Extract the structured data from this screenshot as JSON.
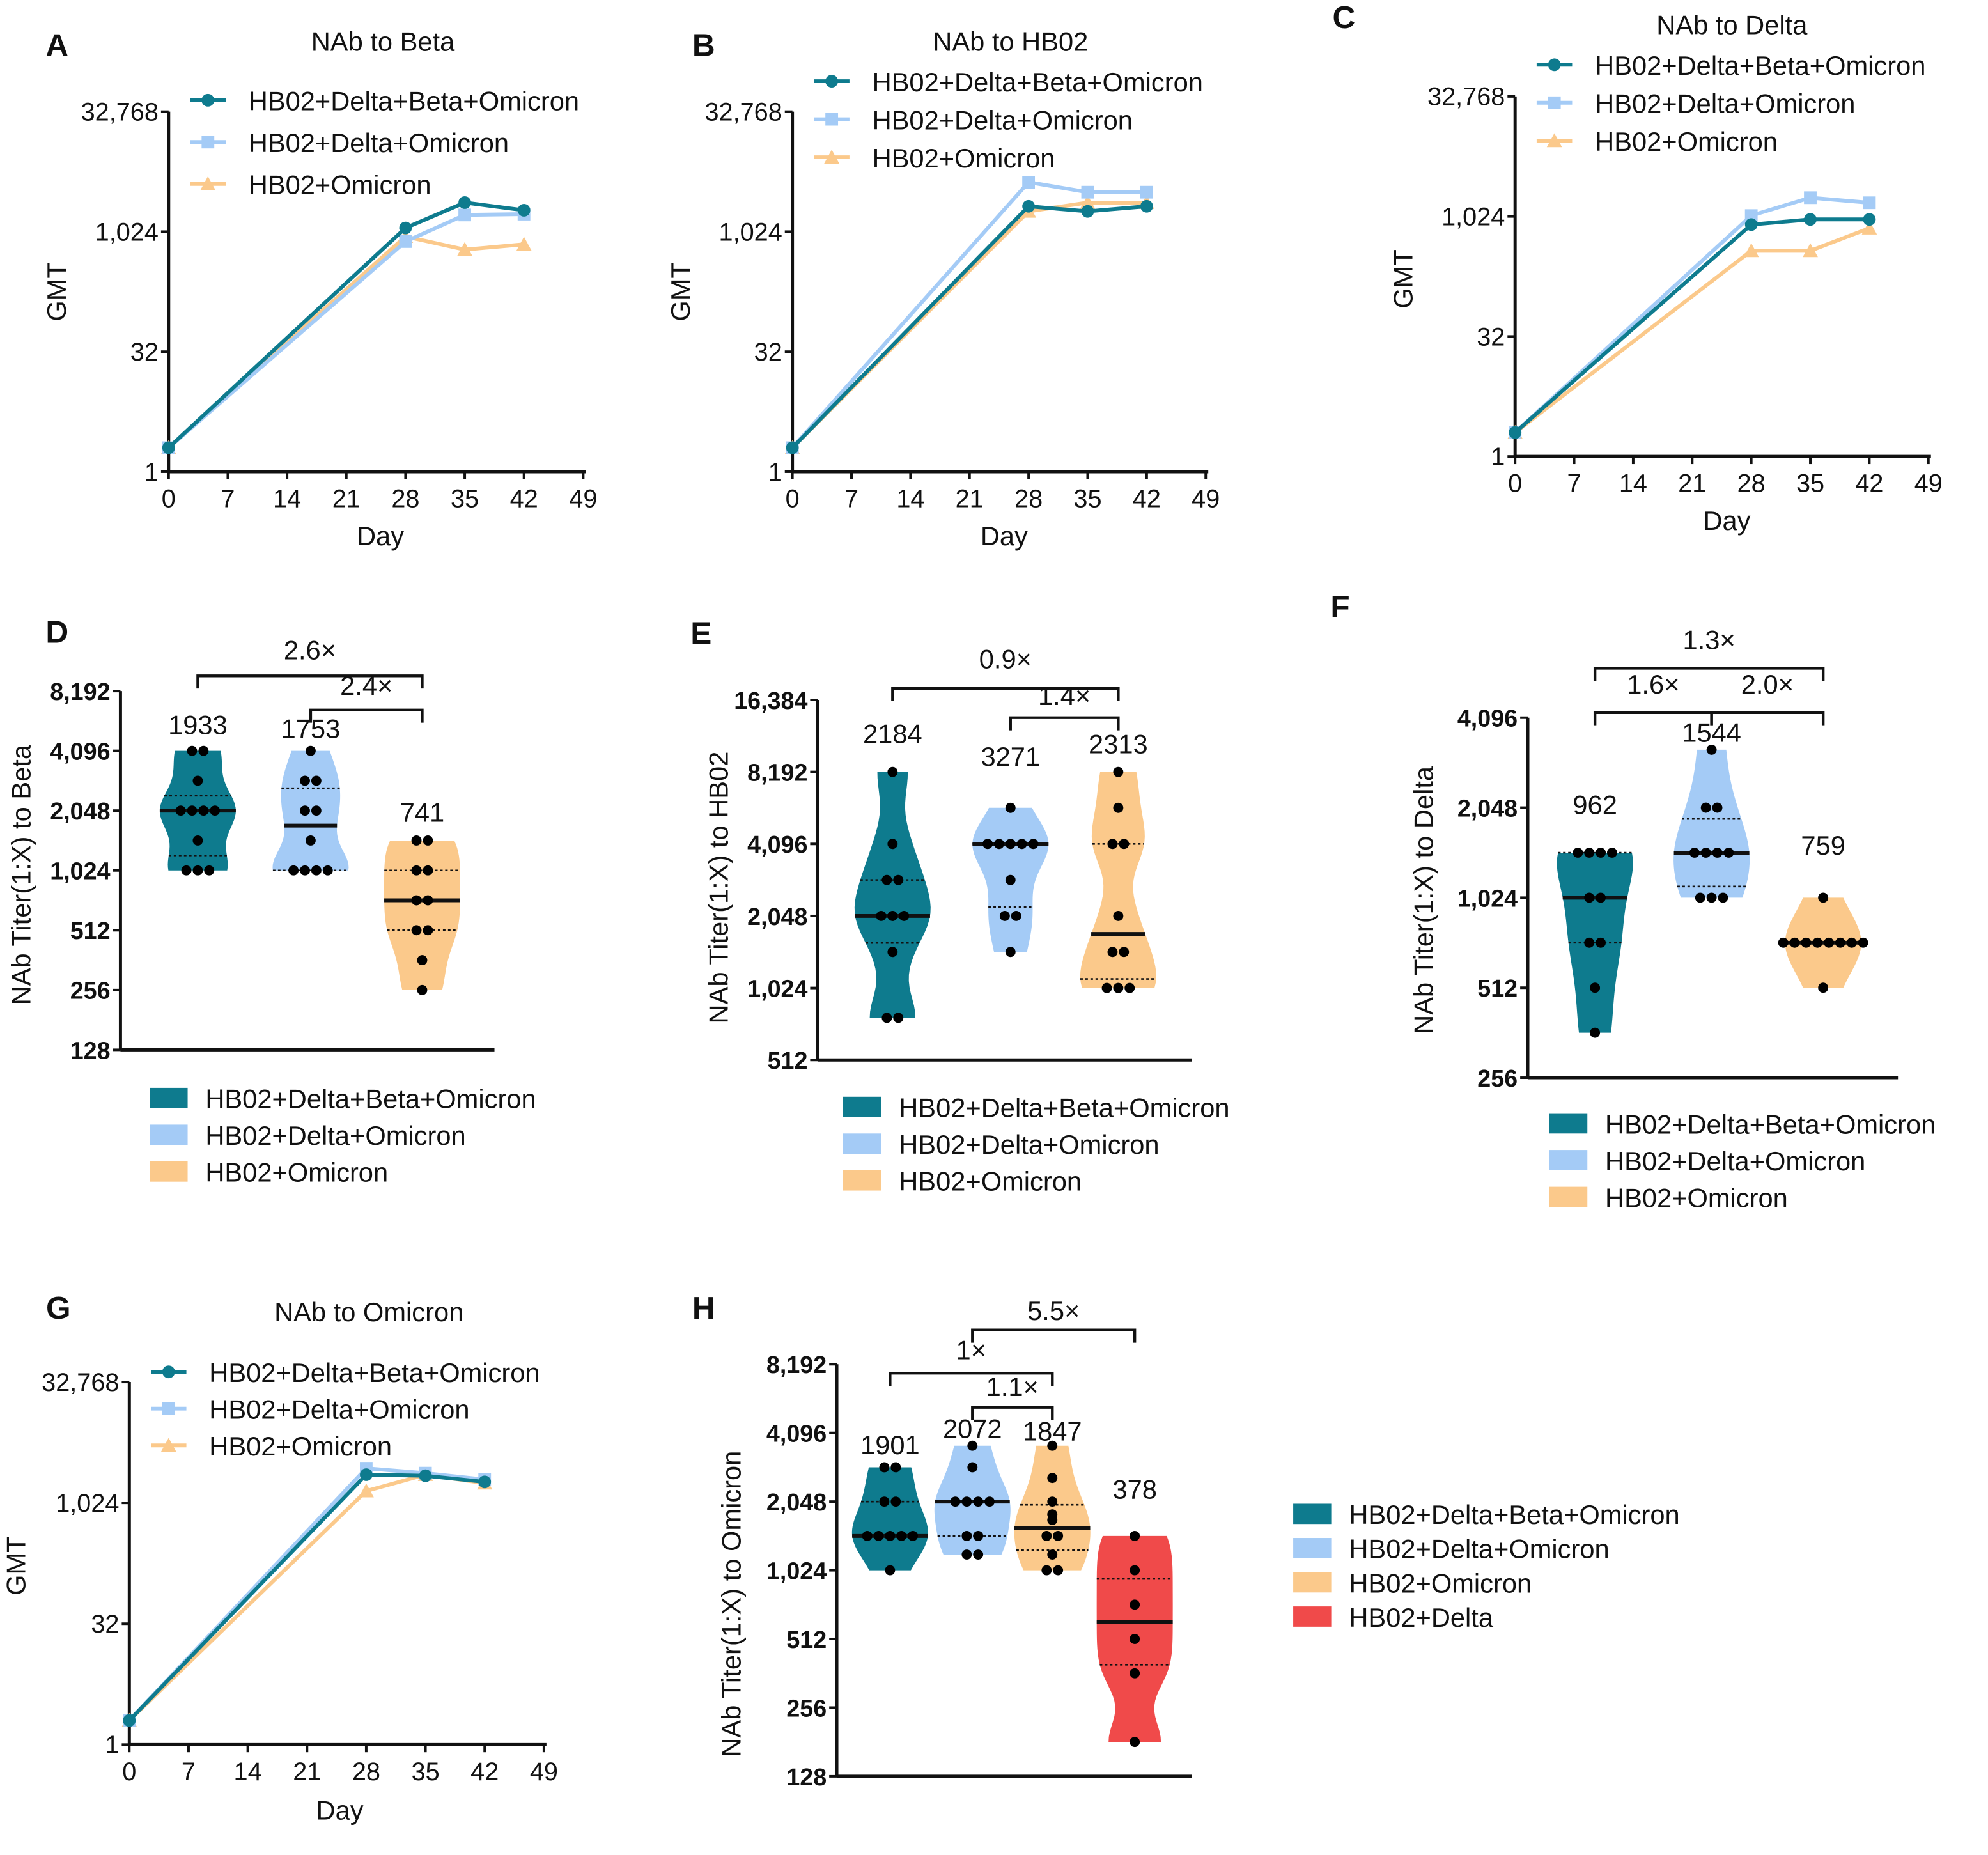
{
  "colors": {
    "teal": "#0e7b8e",
    "blue": "#a4cbf6",
    "orange": "#fbc98b",
    "red": "#f04a4a",
    "axis": "#111111"
  },
  "chart_data": [
    {
      "panel": "A",
      "type": "line",
      "title": "NAb to Beta",
      "xlabel": "Day",
      "ylabel": "GMT",
      "yscale": "log2",
      "ylim": [
        1,
        32768
      ],
      "yticks": [
        "1",
        "32",
        "1,024",
        "32,768"
      ],
      "xticks": [
        "0",
        "7",
        "14",
        "21",
        "28",
        "35",
        "42",
        "49"
      ],
      "xlim": [
        0,
        49
      ],
      "x": [
        0,
        28,
        35,
        42
      ],
      "series": [
        {
          "name": "HB02+Delta+Beta+Omicron",
          "marker": "circle",
          "values": [
            2,
            1140,
            2370,
            1900
          ]
        },
        {
          "name": "HB02+Delta+Omicron",
          "marker": "square",
          "values": [
            2,
            770,
            1660,
            1700
          ]
        },
        {
          "name": "HB02+Omicron",
          "marker": "triangle",
          "values": [
            2,
            890,
            610,
            710
          ]
        }
      ]
    },
    {
      "panel": "B",
      "type": "line",
      "title": "NAb to HB02",
      "xlabel": "Day",
      "ylabel": "GMT",
      "yscale": "log2",
      "ylim": [
        1,
        32768
      ],
      "yticks": [
        "1",
        "32",
        "1,024",
        "32,768"
      ],
      "xticks": [
        "0",
        "7",
        "14",
        "21",
        "28",
        "35",
        "42",
        "49"
      ],
      "xlim": [
        0,
        49
      ],
      "x": [
        0,
        28,
        35,
        42
      ],
      "series": [
        {
          "name": "HB02+Delta+Beta+Omicron",
          "marker": "circle",
          "values": [
            2,
            2130,
            1840,
            2130
          ]
        },
        {
          "name": "HB02+Delta+Omicron",
          "marker": "square",
          "values": [
            2,
            4270,
            3200,
            3200
          ]
        },
        {
          "name": "HB02+Omicron",
          "marker": "triangle",
          "values": [
            2,
            1840,
            2370,
            2370
          ]
        }
      ]
    },
    {
      "panel": "C",
      "type": "line",
      "title": "NAb to Delta",
      "xlabel": "Day",
      "ylabel": "GMT",
      "yscale": "log2",
      "ylim": [
        1,
        32768
      ],
      "yticks": [
        "1",
        "32",
        "1,024",
        "32,768"
      ],
      "xticks": [
        "0",
        "7",
        "14",
        "21",
        "28",
        "35",
        "42",
        "49"
      ],
      "xlim": [
        0,
        49
      ],
      "x": [
        0,
        28,
        35,
        42
      ],
      "series": [
        {
          "name": "HB02+Delta+Beta+Omicron",
          "marker": "circle",
          "values": [
            2,
            810,
            940,
            940
          ]
        },
        {
          "name": "HB02+Delta+Omicron",
          "marker": "square",
          "values": [
            2,
            1050,
            1760,
            1520
          ]
        },
        {
          "name": "HB02+Omicron",
          "marker": "triangle",
          "values": [
            2,
            380,
            380,
            730
          ]
        }
      ]
    },
    {
      "panel": "D",
      "type": "violin",
      "ylabel": "NAb Titer(1:X) to Beta",
      "yscale": "log2",
      "ylim": [
        128,
        8192
      ],
      "yticks": [
        "128",
        "256",
        "512",
        "1,024",
        "2,048",
        "4,096",
        "8,192"
      ],
      "groups": [
        {
          "name": "HB02+Delta+Beta+Omicron",
          "gmt": "1933",
          "points": [
            4096,
            4096,
            2896,
            2048,
            2048,
            2048,
            2048,
            1448,
            1024,
            1024,
            1024
          ]
        },
        {
          "name": "HB02+Delta+Omicron",
          "gmt": "1753",
          "points": [
            4096,
            2896,
            2896,
            2048,
            1448,
            1024,
            1024,
            1024,
            1024,
            2048
          ]
        },
        {
          "name": "HB02+Omicron",
          "gmt": "741",
          "points": [
            1448,
            1448,
            1024,
            1024,
            724,
            724,
            512,
            512,
            362,
            256
          ]
        }
      ],
      "comparisons": [
        {
          "from": 0,
          "to": 2,
          "label": "2.6×"
        },
        {
          "from": 1,
          "to": 2,
          "label": "2.4×"
        }
      ]
    },
    {
      "panel": "E",
      "type": "violin",
      "ylabel": "NAb Titer(1:X) to HB02",
      "yscale": "log2",
      "ylim": [
        512,
        16384
      ],
      "yticks": [
        "512",
        "1,024",
        "2,048",
        "4,096",
        "8,192",
        "16,384"
      ],
      "groups": [
        {
          "name": "HB02+Delta+Beta+Omicron",
          "gmt": "2184",
          "points": [
            8192,
            4096,
            2896,
            2896,
            2048,
            2048,
            2048,
            1448,
            768,
            768
          ]
        },
        {
          "name": "HB02+Delta+Omicron",
          "gmt": "3271",
          "points": [
            5800,
            4096,
            4096,
            4096,
            4096,
            4096,
            2896,
            2048,
            2048,
            1448
          ]
        },
        {
          "name": "HB02+Omicron",
          "gmt": "2313",
          "points": [
            8192,
            5800,
            4096,
            4096,
            2048,
            1448,
            1448,
            1024,
            1024,
            1024
          ]
        }
      ],
      "comparisons": [
        {
          "from": 0,
          "to": 2,
          "label": "0.9×"
        },
        {
          "from": 1,
          "to": 2,
          "label": "1.4×"
        }
      ]
    },
    {
      "panel": "F",
      "type": "violin",
      "ylabel": "NAb Titer(1:X) to Delta",
      "yscale": "log2",
      "ylim": [
        256,
        4096
      ],
      "yticks": [
        "256",
        "512",
        "1,024",
        "2,048",
        "4,096"
      ],
      "groups": [
        {
          "name": "HB02+Delta+Beta+Omicron",
          "gmt": "962",
          "points": [
            1448,
            1448,
            1448,
            1448,
            1024,
            1024,
            724,
            724,
            512,
            362
          ]
        },
        {
          "name": "HB02+Delta+Omicron",
          "gmt": "1544",
          "points": [
            3200,
            2048,
            2048,
            1448,
            1448,
            1448,
            1448,
            1024,
            1024,
            1024
          ]
        },
        {
          "name": "HB02+Omicron",
          "gmt": "759",
          "points": [
            1024,
            724,
            724,
            724,
            724,
            724,
            724,
            724,
            724,
            512
          ]
        }
      ],
      "comparisons": [
        {
          "from": 0,
          "to": 2,
          "label": "1.3×"
        },
        {
          "from": 0,
          "to": 1,
          "label": "1.6×"
        },
        {
          "from": 1,
          "to": 2,
          "label": "2.0×"
        }
      ]
    },
    {
      "panel": "G",
      "type": "line",
      "title": "NAb to Omicron",
      "xlabel": "Day",
      "ylabel": "GMT",
      "yscale": "log2",
      "ylim": [
        1,
        32768
      ],
      "yticks": [
        "1",
        "32",
        "1,024",
        "32,768"
      ],
      "xticks": [
        "0",
        "7",
        "14",
        "21",
        "28",
        "35",
        "42",
        "49"
      ],
      "xlim": [
        0,
        49
      ],
      "x": [
        0,
        28,
        35,
        42
      ],
      "series": [
        {
          "name": "HB02+Delta+Beta+Omicron",
          "marker": "circle",
          "values": [
            2,
            2300,
            2230,
            1870
          ]
        },
        {
          "name": "HB02+Delta+Omicron",
          "marker": "square",
          "values": [
            2,
            2760,
            2400,
            2000
          ]
        },
        {
          "name": "HB02+Omicron",
          "marker": "triangle",
          "values": [
            2,
            1440,
            2300,
            1800
          ]
        }
      ]
    },
    {
      "panel": "H",
      "type": "violin",
      "ylabel": "NAb Titer(1:X) to Omicron",
      "yscale": "log2",
      "ylim": [
        128,
        8192
      ],
      "yticks": [
        "128",
        "256",
        "512",
        "1,024",
        "2,048",
        "4,096",
        "8,192"
      ],
      "groups": [
        {
          "name": "HB02+Delta+Beta+Omicron",
          "gmt": "1901",
          "points": [
            2896,
            2896,
            2048,
            2048,
            1448,
            1448,
            1448,
            1448,
            1448,
            1024
          ]
        },
        {
          "name": "HB02+Delta+Omicron",
          "gmt": "2072",
          "points": [
            3600,
            2896,
            2048,
            2048,
            2048,
            2048,
            1448,
            1448,
            1200,
            1200
          ]
        },
        {
          "name": "HB02+Omicron",
          "gmt": "1847",
          "points": [
            3600,
            2600,
            2048,
            1800,
            1700,
            1448,
            1448,
            1200,
            1024,
            1024
          ]
        },
        {
          "name": "HB02+Delta",
          "gmt": "378",
          "points": [
            1448,
            1024,
            724,
            512,
            362,
            181
          ]
        }
      ],
      "comparisons": [
        {
          "from": 1,
          "to": 3,
          "label": "5.5×"
        },
        {
          "from": 0,
          "to": 2,
          "label": "1×"
        },
        {
          "from": 1,
          "to": 2,
          "label": "1.1×"
        }
      ]
    }
  ]
}
